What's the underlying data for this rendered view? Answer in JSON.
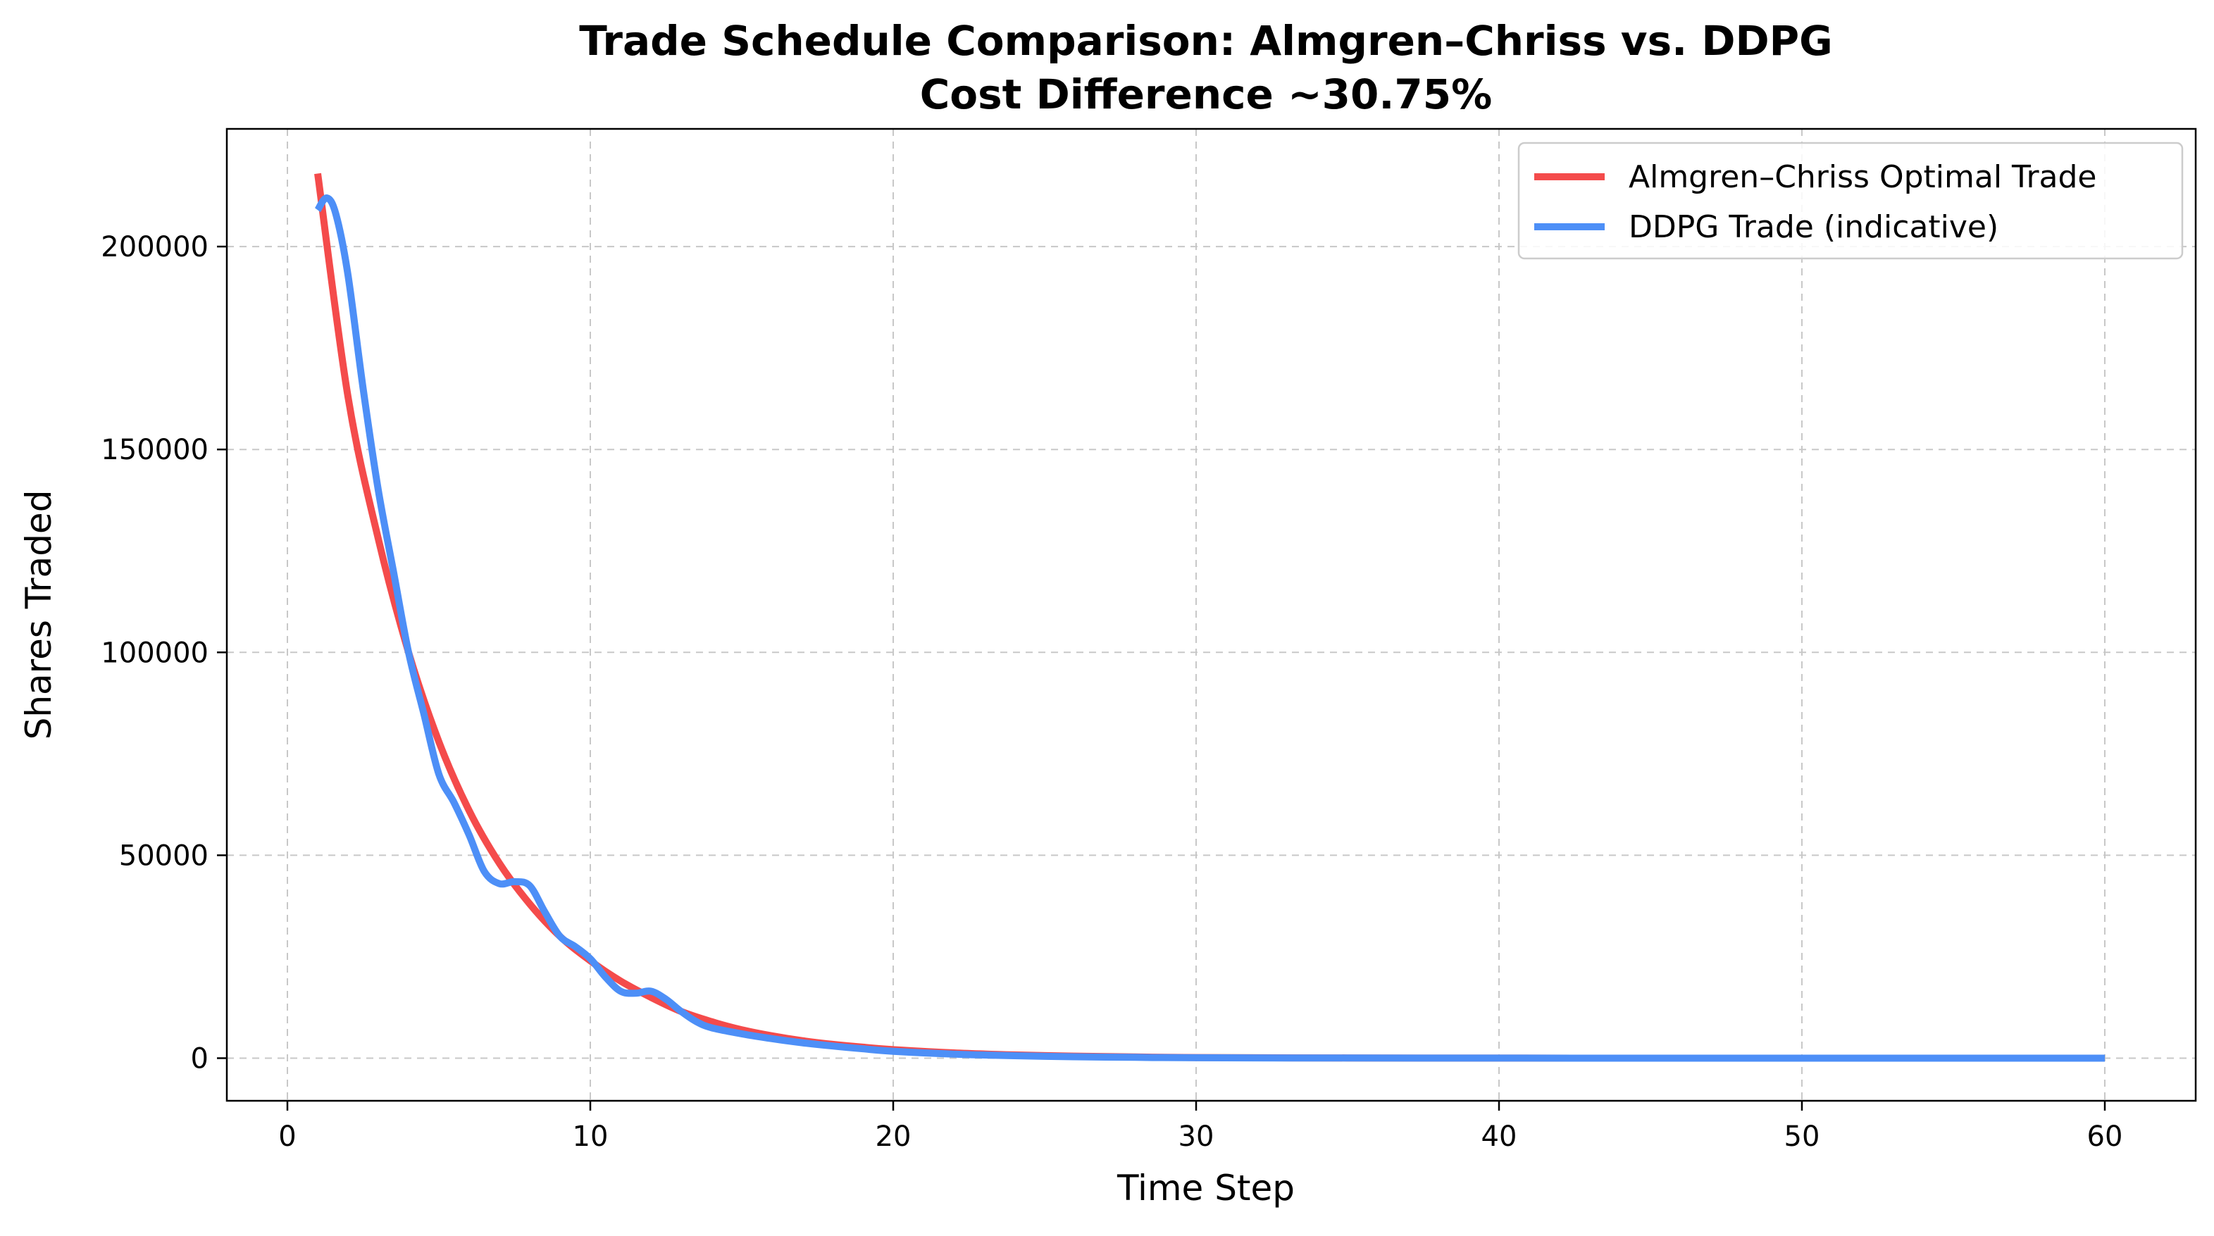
{
  "chart_data": {
    "type": "line",
    "title": "Trade Schedule Comparison: Almgren–Chriss vs. DDPG",
    "subtitle": "Cost Difference ~30.75%",
    "xlabel": "Time Step",
    "ylabel": "Shares Traded",
    "xlim": [
      -2,
      63
    ],
    "ylim": [
      -10500,
      229000
    ],
    "x_ticks": [
      0,
      10,
      20,
      30,
      40,
      50,
      60
    ],
    "y_ticks": [
      0,
      50000,
      100000,
      150000,
      200000
    ],
    "x_tick_labels": [
      "0",
      "10",
      "20",
      "30",
      "40",
      "50",
      "60"
    ],
    "y_tick_labels": [
      "0",
      "50000",
      "100000",
      "150000",
      "200000"
    ],
    "grid": true,
    "legend_position": "top-right",
    "series": [
      {
        "name": "Almgren–Chriss Optimal Trade",
        "color": "#f44b4b",
        "x": [
          1,
          2,
          3,
          4,
          5,
          6,
          7,
          8,
          9,
          10,
          11,
          12,
          13,
          14,
          15,
          16,
          17,
          18,
          19,
          20,
          22,
          24,
          26,
          28,
          30,
          35,
          40,
          45,
          50,
          55,
          60
        ],
        "y": [
          218000,
          163000,
          128000,
          100000,
          78000,
          61000,
          48000,
          38000,
          30000,
          24000,
          19000,
          15000,
          11500,
          9000,
          7000,
          5500,
          4300,
          3400,
          2700,
          2100,
          1300,
          800,
          500,
          300,
          150,
          50,
          15,
          5,
          0,
          0,
          0
        ]
      },
      {
        "name": "DDPG Trade (indicative)",
        "color": "#4d8ff7",
        "x": [
          1,
          1.3,
          1.6,
          2,
          2.5,
          3,
          3.5,
          4,
          4.5,
          5,
          5.5,
          6,
          6.5,
          7,
          7.5,
          8,
          8.5,
          9,
          9.5,
          10,
          10.5,
          11,
          11.5,
          12,
          12.5,
          13,
          13.5,
          14,
          15,
          16,
          17,
          18,
          19,
          20,
          22,
          24,
          26,
          28,
          30,
          35,
          40,
          45,
          50,
          55,
          60
        ],
        "y": [
          209000,
          212000,
          208000,
          193000,
          165000,
          140000,
          120000,
          100000,
          85000,
          70000,
          63000,
          55000,
          46000,
          43000,
          43500,
          42500,
          36000,
          30000,
          27500,
          24500,
          20000,
          16500,
          16000,
          16500,
          14500,
          11500,
          9000,
          7500,
          6000,
          4800,
          3800,
          3000,
          2300,
          1700,
          1000,
          600,
          350,
          200,
          100,
          30,
          10,
          3,
          0,
          0,
          0
        ]
      }
    ]
  }
}
